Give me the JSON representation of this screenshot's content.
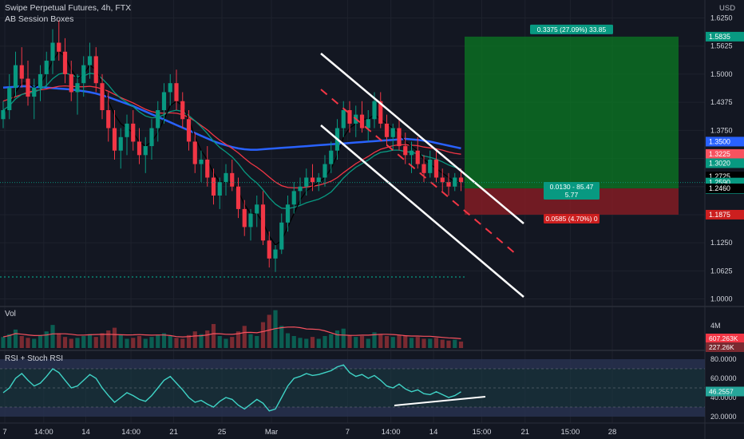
{
  "header": {
    "title": "Swipe Perpetual Futures, 4h, FTX",
    "indicator": "AB Session Boxes",
    "currency": "USD"
  },
  "chart_data": {
    "type": "candlestick",
    "price_axis": {
      "ticks": [
        "1.6250",
        "1.5625",
        "1.5000",
        "1.4375",
        "1.3750",
        "1.3125",
        "1.2500",
        "1.1875",
        "1.1250",
        "1.0625",
        "1.0000"
      ],
      "range": [
        0.985,
        1.665
      ]
    },
    "time_axis": {
      "labels": [
        {
          "t": 7,
          "text": "7"
        },
        {
          "t": 13.3,
          "text": "14:00"
        },
        {
          "t": 20.1,
          "text": "14"
        },
        {
          "t": 27.4,
          "text": "14:00"
        },
        {
          "t": 34.3,
          "text": "21"
        },
        {
          "t": 42.1,
          "text": "25"
        },
        {
          "t": 50.1,
          "text": "Mar"
        },
        {
          "t": 62.4,
          "text": "7"
        },
        {
          "t": 69.4,
          "text": "14:00"
        },
        {
          "t": 76.3,
          "text": "14"
        },
        {
          "t": 84.1,
          "text": "15:00"
        },
        {
          "t": 91.1,
          "text": "21"
        },
        {
          "t": 98.4,
          "text": "15:00"
        },
        {
          "t": 105.2,
          "text": "28"
        }
      ]
    },
    "candles": [
      [
        1.4,
        1.44,
        1.38,
        1.42
      ],
      [
        1.42,
        1.5,
        1.4,
        1.47
      ],
      [
        1.47,
        1.55,
        1.45,
        1.52
      ],
      [
        1.52,
        1.56,
        1.47,
        1.49
      ],
      [
        1.49,
        1.53,
        1.43,
        1.45
      ],
      [
        1.45,
        1.49,
        1.4,
        1.47
      ],
      [
        1.47,
        1.52,
        1.44,
        1.5
      ],
      [
        1.5,
        1.55,
        1.47,
        1.53
      ],
      [
        1.53,
        1.6,
        1.5,
        1.57
      ],
      [
        1.57,
        1.62,
        1.53,
        1.55
      ],
      [
        1.55,
        1.58,
        1.48,
        1.5
      ],
      [
        1.5,
        1.53,
        1.44,
        1.46
      ],
      [
        1.46,
        1.5,
        1.41,
        1.48
      ],
      [
        1.48,
        1.54,
        1.45,
        1.52
      ],
      [
        1.52,
        1.57,
        1.49,
        1.54
      ],
      [
        1.54,
        1.56,
        1.46,
        1.48
      ],
      [
        1.48,
        1.5,
        1.4,
        1.42
      ],
      [
        1.42,
        1.46,
        1.35,
        1.38
      ],
      [
        1.38,
        1.42,
        1.31,
        1.33
      ],
      [
        1.33,
        1.38,
        1.29,
        1.36
      ],
      [
        1.36,
        1.41,
        1.32,
        1.39
      ],
      [
        1.39,
        1.42,
        1.33,
        1.35
      ],
      [
        1.35,
        1.38,
        1.3,
        1.32
      ],
      [
        1.32,
        1.36,
        1.28,
        1.34
      ],
      [
        1.34,
        1.4,
        1.31,
        1.38
      ],
      [
        1.38,
        1.44,
        1.35,
        1.42
      ],
      [
        1.42,
        1.48,
        1.39,
        1.46
      ],
      [
        1.46,
        1.5,
        1.43,
        1.48
      ],
      [
        1.48,
        1.51,
        1.42,
        1.44
      ],
      [
        1.44,
        1.46,
        1.38,
        1.4
      ],
      [
        1.4,
        1.42,
        1.33,
        1.35
      ],
      [
        1.35,
        1.37,
        1.28,
        1.3
      ],
      [
        1.3,
        1.33,
        1.26,
        1.31
      ],
      [
        1.31,
        1.34,
        1.25,
        1.27
      ],
      [
        1.27,
        1.29,
        1.21,
        1.23
      ],
      [
        1.23,
        1.27,
        1.2,
        1.26
      ],
      [
        1.26,
        1.3,
        1.23,
        1.28
      ],
      [
        1.28,
        1.31,
        1.24,
        1.25
      ],
      [
        1.25,
        1.27,
        1.18,
        1.2
      ],
      [
        1.2,
        1.22,
        1.14,
        1.16
      ],
      [
        1.16,
        1.2,
        1.13,
        1.19
      ],
      [
        1.19,
        1.23,
        1.16,
        1.21
      ],
      [
        1.21,
        1.24,
        1.12,
        1.13
      ],
      [
        1.13,
        1.15,
        1.07,
        1.09
      ],
      [
        1.09,
        1.12,
        1.06,
        1.11
      ],
      [
        1.11,
        1.19,
        1.1,
        1.17
      ],
      [
        1.17,
        1.23,
        1.15,
        1.21
      ],
      [
        1.21,
        1.26,
        1.19,
        1.24
      ],
      [
        1.24,
        1.27,
        1.21,
        1.25
      ],
      [
        1.25,
        1.29,
        1.23,
        1.27
      ],
      [
        1.27,
        1.3,
        1.24,
        1.26
      ],
      [
        1.26,
        1.28,
        1.24,
        1.27
      ],
      [
        1.27,
        1.32,
        1.25,
        1.3
      ],
      [
        1.3,
        1.35,
        1.28,
        1.33
      ],
      [
        1.33,
        1.4,
        1.31,
        1.38
      ],
      [
        1.38,
        1.44,
        1.36,
        1.42
      ],
      [
        1.42,
        1.44,
        1.37,
        1.39
      ],
      [
        1.39,
        1.43,
        1.36,
        1.41
      ],
      [
        1.41,
        1.44,
        1.37,
        1.38
      ],
      [
        1.38,
        1.42,
        1.35,
        1.4
      ],
      [
        1.4,
        1.46,
        1.38,
        1.44
      ],
      [
        1.44,
        1.46,
        1.38,
        1.39
      ],
      [
        1.39,
        1.41,
        1.34,
        1.36
      ],
      [
        1.36,
        1.39,
        1.33,
        1.38
      ],
      [
        1.38,
        1.4,
        1.33,
        1.34
      ],
      [
        1.34,
        1.37,
        1.3,
        1.32
      ],
      [
        1.32,
        1.35,
        1.28,
        1.33
      ],
      [
        1.33,
        1.36,
        1.29,
        1.3
      ],
      [
        1.3,
        1.32,
        1.26,
        1.28
      ],
      [
        1.28,
        1.33,
        1.27,
        1.31
      ],
      [
        1.31,
        1.33,
        1.26,
        1.27
      ],
      [
        1.27,
        1.29,
        1.24,
        1.26
      ],
      [
        1.26,
        1.28,
        1.23,
        1.25
      ],
      [
        1.25,
        1.28,
        1.24,
        1.27
      ],
      [
        1.27,
        1.29,
        1.24,
        1.26
      ]
    ],
    "moving_averages": [
      {
        "color": "#2962ff",
        "values": [
          1.47,
          1.471,
          1.472,
          1.473,
          1.473,
          1.472,
          1.471,
          1.47,
          1.469,
          1.468,
          1.467,
          1.466,
          1.464,
          1.462,
          1.46,
          1.457,
          1.453,
          1.449,
          1.444,
          1.439,
          1.434,
          1.429,
          1.423,
          1.417,
          1.411,
          1.405,
          1.399,
          1.393,
          1.387,
          1.381,
          1.375,
          1.369,
          1.363,
          1.357,
          1.351,
          1.346,
          1.342,
          1.338,
          1.335,
          1.333,
          1.332,
          1.332,
          1.333,
          1.334,
          1.335,
          1.336,
          1.337,
          1.338,
          1.339,
          1.34,
          1.341,
          1.342,
          1.343,
          1.344,
          1.345,
          1.346,
          1.347,
          1.348,
          1.349,
          1.35,
          1.351,
          1.352,
          1.353,
          1.354,
          1.355,
          1.356,
          1.355,
          1.354,
          1.352,
          1.35,
          1.347,
          1.344,
          1.341,
          1.338,
          1.335
        ]
      },
      {
        "color": "#f23645",
        "values": [
          1.44,
          1.445,
          1.45,
          1.455,
          1.46,
          1.463,
          1.465,
          1.467,
          1.47,
          1.473,
          1.474,
          1.473,
          1.472,
          1.472,
          1.473,
          1.471,
          1.467,
          1.462,
          1.455,
          1.448,
          1.442,
          1.436,
          1.429,
          1.422,
          1.417,
          1.414,
          1.413,
          1.414,
          1.413,
          1.41,
          1.404,
          1.396,
          1.386,
          1.376,
          1.364,
          1.353,
          1.344,
          1.335,
          1.325,
          1.313,
          1.302,
          1.293,
          1.283,
          1.271,
          1.26,
          1.252,
          1.248,
          1.247,
          1.247,
          1.249,
          1.251,
          1.253,
          1.257,
          1.262,
          1.27,
          1.281,
          1.291,
          1.301,
          1.309,
          1.317,
          1.326,
          1.333,
          1.337,
          1.341,
          1.343,
          1.343,
          1.342,
          1.341,
          1.338,
          1.336,
          1.334,
          1.331,
          1.327,
          1.324,
          1.322
        ]
      },
      {
        "color": "#089981",
        "values": [
          1.42,
          1.43,
          1.445,
          1.455,
          1.458,
          1.46,
          1.466,
          1.475,
          1.49,
          1.5,
          1.503,
          1.498,
          1.494,
          1.496,
          1.502,
          1.5,
          1.49,
          1.476,
          1.459,
          1.446,
          1.437,
          1.428,
          1.416,
          1.407,
          1.403,
          1.404,
          1.41,
          1.417,
          1.42,
          1.417,
          1.408,
          1.396,
          1.383,
          1.368,
          1.351,
          1.337,
          1.327,
          1.316,
          1.301,
          1.283,
          1.269,
          1.258,
          1.243,
          1.225,
          1.211,
          1.202,
          1.201,
          1.204,
          1.208,
          1.214,
          1.218,
          1.222,
          1.229,
          1.238,
          1.253,
          1.269,
          1.282,
          1.293,
          1.301,
          1.309,
          1.319,
          1.326,
          1.328,
          1.331,
          1.331,
          1.328,
          1.326,
          1.323,
          1.318,
          1.315,
          1.311,
          1.305,
          1.298,
          1.293,
          1.289
        ]
      },
      {
        "color": "#000000",
        "values": [
          1.41,
          1.43,
          1.46,
          1.48,
          1.48,
          1.47,
          1.48,
          1.5,
          1.53,
          1.55,
          1.54,
          1.51,
          1.49,
          1.5,
          1.52,
          1.51,
          1.48,
          1.44,
          1.41,
          1.39,
          1.38,
          1.37,
          1.35,
          1.34,
          1.35,
          1.37,
          1.4,
          1.43,
          1.44,
          1.43,
          1.4,
          1.36,
          1.33,
          1.31,
          1.28,
          1.26,
          1.26,
          1.26,
          1.24,
          1.21,
          1.19,
          1.19,
          1.17,
          1.14,
          1.12,
          1.13,
          1.16,
          1.19,
          1.22,
          1.24,
          1.25,
          1.26,
          1.27,
          1.29,
          1.32,
          1.36,
          1.38,
          1.39,
          1.4,
          1.4,
          1.41,
          1.4,
          1.39,
          1.38,
          1.37,
          1.35,
          1.34,
          1.33,
          1.31,
          1.3,
          1.29,
          1.28,
          1.27,
          1.26,
          1.26
        ]
      }
    ],
    "price_labels": [
      {
        "price": 1.5835,
        "text": "1.5835",
        "color": "#089981"
      },
      {
        "price": 1.35,
        "text": "1.3500",
        "color": "#2962ff"
      },
      {
        "price": 1.3225,
        "text": "1.3225",
        "color": "#f7525f"
      },
      {
        "price": 1.302,
        "text": "1.3020",
        "color": "#089981"
      },
      {
        "price": 1.2725,
        "text": "1.2725",
        "color": "#000000"
      },
      {
        "price": 1.259,
        "text": "1.2590",
        "color": "#089981",
        "sub": "01:19:15"
      },
      {
        "price": 1.246,
        "text": "1.2460",
        "color": "#000000"
      },
      {
        "price": 1.1875,
        "text": "1.1875",
        "color": "#cc1f1f"
      }
    ],
    "position": {
      "entry": 1.246,
      "target": 1.5835,
      "stop": 1.1875,
      "target_label": "0.3375 (27.09%) 33.85",
      "entry_label_1": "0.0130 - 85.47",
      "entry_label_2": "5.77",
      "stop_label": "0.0585 (4.70%) 0"
    },
    "volume": {
      "label": "Vol",
      "axis_label": "4M",
      "values": [
        1.2,
        1.5,
        2,
        1.3,
        1.1,
        1,
        1.4,
        1.8,
        2.5,
        1.6,
        1.2,
        1,
        1.1,
        1.3,
        1.5,
        1.2,
        1.6,
        1.9,
        2.2,
        1.4,
        1,
        1.1,
        1.3,
        1,
        1.2,
        1.4,
        1.6,
        1.3,
        1.1,
        1,
        1.4,
        1.8,
        1.5,
        1.9,
        2.6,
        1.3,
        1,
        1.2,
        1.8,
        2.4,
        1.5,
        1.3,
        2.8,
        3.6,
        4.1,
        2.4,
        1.6,
        1.3,
        1.1,
        1,
        1.2,
        1,
        1.3,
        1.5,
        1.9,
        2.1,
        1.4,
        1.2,
        1.3,
        1,
        1.7,
        1.5,
        1.3,
        1.2,
        1.4,
        1.3,
        1.1,
        1.2,
        1,
        1,
        1.1,
        0.9,
        0.8,
        0.9,
        0.7
      ],
      "ma_label": "607.263K",
      "val_label": "227.26K"
    },
    "rsi": {
      "label": "RSI + Stoch RSI",
      "ticks": [
        "80.0000",
        "60.0000",
        "40.0000",
        "20.0000"
      ],
      "value_label": "46.2557",
      "values": [
        45,
        50,
        60,
        65,
        58,
        52,
        55,
        62,
        70,
        66,
        58,
        50,
        52,
        58,
        64,
        60,
        50,
        42,
        35,
        40,
        45,
        42,
        38,
        36,
        42,
        50,
        58,
        62,
        55,
        48,
        40,
        35,
        37,
        33,
        30,
        36,
        40,
        38,
        32,
        28,
        33,
        38,
        34,
        26,
        28,
        40,
        52,
        60,
        62,
        65,
        63,
        64,
        66,
        68,
        72,
        74,
        66,
        62,
        64,
        60,
        63,
        58,
        52,
        50,
        54,
        49,
        46,
        48,
        44,
        43,
        46,
        43,
        40,
        42,
        46
      ]
    }
  }
}
